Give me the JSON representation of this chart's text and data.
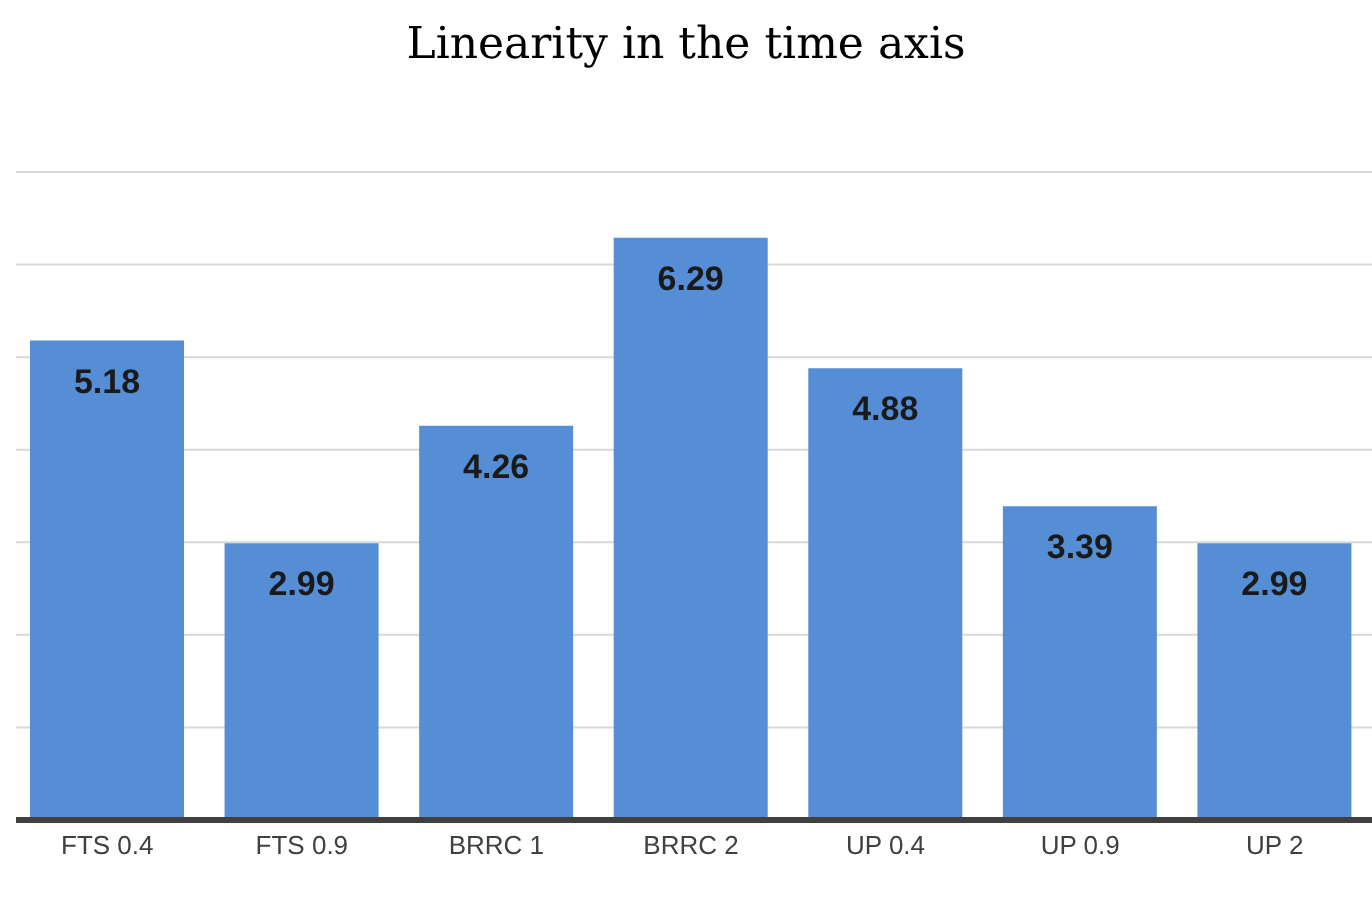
{
  "chart_data": {
    "type": "bar",
    "title": "Linearity in the time axis",
    "categories": [
      "FTS 0.4",
      "FTS 0.9",
      "BRRC 1",
      "BRRC 2",
      "UP 0.4",
      "UP 0.9",
      "UP 2"
    ],
    "values": [
      5.18,
      2.99,
      4.26,
      6.29,
      4.88,
      3.39,
      2.99
    ],
    "color": "#558ed5",
    "data_labels": true,
    "ylim": [
      0,
      7
    ],
    "yticks": [
      {
        "value": 0,
        "label": null
      },
      {
        "value": 1,
        "label": null
      },
      {
        "value": 2,
        "label": null
      },
      {
        "value": 3,
        "label": null
      },
      {
        "value": 4,
        "label": null
      },
      {
        "value": 5,
        "label": null
      },
      {
        "value": 6,
        "label": null
      },
      {
        "value": 7,
        "label": null
      }
    ],
    "grid": "y",
    "tick_labels": "x"
  }
}
